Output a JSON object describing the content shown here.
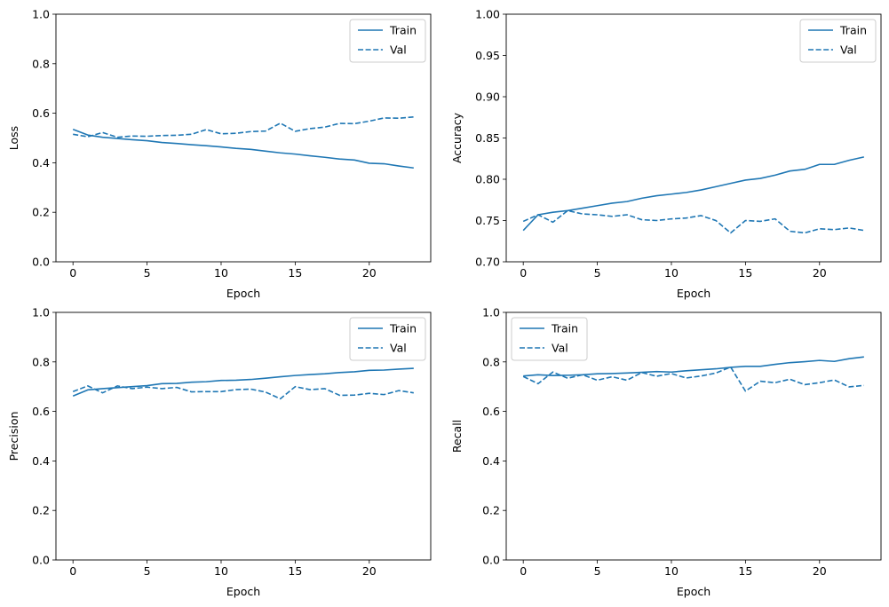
{
  "chart_data": [
    {
      "type": "line",
      "xlabel": "Epoch",
      "ylabel": "Loss",
      "xlim": [
        -1.15,
        24.15
      ],
      "ylim": [
        0.0,
        1.0
      ],
      "xticks": [
        "0",
        "5",
        "10",
        "15",
        "20"
      ],
      "yticks": [
        "0.0",
        "0.2",
        "0.4",
        "0.6",
        "0.8",
        "1.0"
      ],
      "legend": "top-right",
      "x": [
        0,
        1,
        2,
        3,
        4,
        5,
        6,
        7,
        8,
        9,
        10,
        11,
        12,
        13,
        14,
        15,
        16,
        17,
        18,
        19,
        20,
        21,
        22,
        23
      ],
      "series": [
        {
          "name": "Train",
          "style": "solid",
          "color": "#1f77b4",
          "values": [
            0.535,
            0.512,
            0.503,
            0.498,
            0.493,
            0.489,
            0.482,
            0.478,
            0.473,
            0.469,
            0.464,
            0.458,
            0.454,
            0.447,
            0.44,
            0.435,
            0.428,
            0.422,
            0.415,
            0.411,
            0.398,
            0.396,
            0.387,
            0.379
          ]
        },
        {
          "name": "Val",
          "style": "dashed",
          "color": "#1f77b4",
          "values": [
            0.515,
            0.505,
            0.522,
            0.503,
            0.508,
            0.507,
            0.51,
            0.511,
            0.515,
            0.534,
            0.517,
            0.519,
            0.526,
            0.528,
            0.56,
            0.527,
            0.538,
            0.544,
            0.559,
            0.558,
            0.568,
            0.581,
            0.58,
            0.585
          ]
        }
      ]
    },
    {
      "type": "line",
      "xlabel": "Epoch",
      "ylabel": "Accuracy",
      "xlim": [
        -1.15,
        24.15
      ],
      "ylim": [
        0.7,
        1.0
      ],
      "xticks": [
        "0",
        "5",
        "10",
        "15",
        "20"
      ],
      "yticks": [
        "0.70",
        "0.75",
        "0.80",
        "0.85",
        "0.90",
        "0.95",
        "1.00"
      ],
      "legend": "top-right",
      "x": [
        0,
        1,
        2,
        3,
        4,
        5,
        6,
        7,
        8,
        9,
        10,
        11,
        12,
        13,
        14,
        15,
        16,
        17,
        18,
        19,
        20,
        21,
        22,
        23
      ],
      "series": [
        {
          "name": "Train",
          "style": "solid",
          "color": "#1f77b4",
          "values": [
            0.738,
            0.757,
            0.76,
            0.762,
            0.765,
            0.768,
            0.771,
            0.773,
            0.777,
            0.78,
            0.782,
            0.784,
            0.787,
            0.791,
            0.795,
            0.799,
            0.801,
            0.805,
            0.81,
            0.812,
            0.818,
            0.818,
            0.823,
            0.827
          ]
        },
        {
          "name": "Val",
          "style": "dashed",
          "color": "#1f77b4",
          "values": [
            0.749,
            0.757,
            0.748,
            0.762,
            0.758,
            0.757,
            0.755,
            0.757,
            0.751,
            0.75,
            0.752,
            0.753,
            0.756,
            0.75,
            0.735,
            0.75,
            0.749,
            0.752,
            0.737,
            0.735,
            0.74,
            0.739,
            0.741,
            0.738
          ]
        }
      ]
    },
    {
      "type": "line",
      "xlabel": "Epoch",
      "ylabel": "Precision",
      "xlim": [
        -1.15,
        24.15
      ],
      "ylim": [
        0.0,
        1.0
      ],
      "xticks": [
        "0",
        "5",
        "10",
        "15",
        "20"
      ],
      "yticks": [
        "0.0",
        "0.2",
        "0.4",
        "0.6",
        "0.8",
        "1.0"
      ],
      "legend": "top-right",
      "x": [
        0,
        1,
        2,
        3,
        4,
        5,
        6,
        7,
        8,
        9,
        10,
        11,
        12,
        13,
        14,
        15,
        16,
        17,
        18,
        19,
        20,
        21,
        22,
        23
      ],
      "series": [
        {
          "name": "Train",
          "style": "solid",
          "color": "#1f77b4",
          "values": [
            0.662,
            0.687,
            0.692,
            0.696,
            0.7,
            0.704,
            0.712,
            0.713,
            0.718,
            0.72,
            0.725,
            0.726,
            0.729,
            0.734,
            0.74,
            0.745,
            0.749,
            0.752,
            0.757,
            0.76,
            0.766,
            0.767,
            0.771,
            0.774
          ]
        },
        {
          "name": "Val",
          "style": "dashed",
          "color": "#1f77b4",
          "values": [
            0.68,
            0.703,
            0.675,
            0.703,
            0.692,
            0.698,
            0.692,
            0.697,
            0.679,
            0.68,
            0.68,
            0.688,
            0.69,
            0.678,
            0.651,
            0.7,
            0.688,
            0.692,
            0.665,
            0.666,
            0.673,
            0.668,
            0.684,
            0.675
          ]
        }
      ]
    },
    {
      "type": "line",
      "xlabel": "Epoch",
      "ylabel": "Recall",
      "xlim": [
        -1.15,
        24.15
      ],
      "ylim": [
        0.0,
        1.0
      ],
      "xticks": [
        "0",
        "5",
        "10",
        "15",
        "20"
      ],
      "yticks": [
        "0.0",
        "0.2",
        "0.4",
        "0.6",
        "0.8",
        "1.0"
      ],
      "legend": "top-left",
      "x": [
        0,
        1,
        2,
        3,
        4,
        5,
        6,
        7,
        8,
        9,
        10,
        11,
        12,
        13,
        14,
        15,
        16,
        17,
        18,
        19,
        20,
        21,
        22,
        23
      ],
      "series": [
        {
          "name": "Train",
          "style": "solid",
          "color": "#1f77b4",
          "values": [
            0.743,
            0.748,
            0.745,
            0.746,
            0.748,
            0.752,
            0.753,
            0.755,
            0.758,
            0.761,
            0.759,
            0.764,
            0.768,
            0.772,
            0.778,
            0.782,
            0.782,
            0.79,
            0.797,
            0.801,
            0.806,
            0.802,
            0.813,
            0.82
          ]
        },
        {
          "name": "Val",
          "style": "dashed",
          "color": "#1f77b4",
          "values": [
            0.741,
            0.712,
            0.759,
            0.734,
            0.748,
            0.726,
            0.74,
            0.726,
            0.757,
            0.742,
            0.753,
            0.735,
            0.743,
            0.755,
            0.779,
            0.682,
            0.722,
            0.716,
            0.73,
            0.708,
            0.716,
            0.727,
            0.699,
            0.705
          ]
        }
      ]
    }
  ]
}
